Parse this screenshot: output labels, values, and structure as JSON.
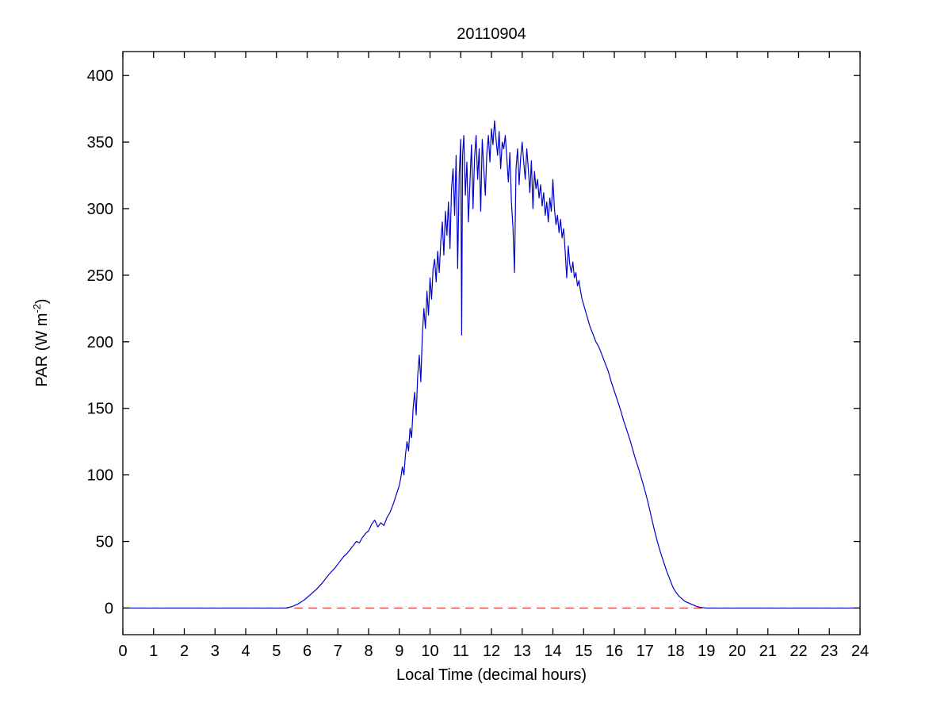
{
  "chart_data": {
    "type": "line",
    "title": "20110904",
    "xlabel": "Local Time (decimal hours)",
    "ylabel": "PAR (W m^-2)",
    "ylabel_parts": {
      "prefix": "PAR (W m",
      "sup": "-2",
      "suffix": ")"
    },
    "xlim": [
      0,
      24
    ],
    "ylim": [
      -20,
      418
    ],
    "xticks": [
      0,
      1,
      2,
      3,
      4,
      5,
      6,
      7,
      8,
      9,
      10,
      11,
      12,
      13,
      14,
      15,
      16,
      17,
      18,
      19,
      20,
      21,
      22,
      23,
      24
    ],
    "yticks": [
      0,
      50,
      100,
      150,
      200,
      250,
      300,
      350,
      400
    ],
    "grid": false,
    "legend": null,
    "axes_color": "#000000",
    "reference_lines": [
      {
        "name": "zero-reference",
        "y": 0,
        "color": "#DD3333",
        "style": "dashed"
      }
    ],
    "series": [
      {
        "name": "PAR",
        "color": "#0000CC",
        "style": "solid",
        "points": [
          [
            0,
            0
          ],
          [
            0.5,
            0
          ],
          [
            1,
            0
          ],
          [
            1.5,
            0
          ],
          [
            2,
            0
          ],
          [
            2.5,
            0
          ],
          [
            3,
            0
          ],
          [
            3.5,
            0
          ],
          [
            4,
            0
          ],
          [
            4.5,
            0
          ],
          [
            5,
            0
          ],
          [
            5.3,
            0
          ],
          [
            5.5,
            1
          ],
          [
            5.7,
            3
          ],
          [
            5.9,
            6
          ],
          [
            6.1,
            10
          ],
          [
            6.3,
            14
          ],
          [
            6.5,
            19
          ],
          [
            6.7,
            25
          ],
          [
            6.9,
            30
          ],
          [
            7.0,
            33
          ],
          [
            7.1,
            36
          ],
          [
            7.2,
            39
          ],
          [
            7.3,
            41
          ],
          [
            7.4,
            44
          ],
          [
            7.5,
            47
          ],
          [
            7.6,
            50
          ],
          [
            7.7,
            49
          ],
          [
            7.8,
            53
          ],
          [
            7.9,
            56
          ],
          [
            8.0,
            58
          ],
          [
            8.1,
            63
          ],
          [
            8.2,
            66
          ],
          [
            8.3,
            61
          ],
          [
            8.4,
            64
          ],
          [
            8.5,
            62
          ],
          [
            8.6,
            68
          ],
          [
            8.7,
            72
          ],
          [
            8.8,
            78
          ],
          [
            8.9,
            85
          ],
          [
            9.0,
            92
          ],
          [
            9.05,
            98
          ],
          [
            9.1,
            106
          ],
          [
            9.15,
            100
          ],
          [
            9.2,
            115
          ],
          [
            9.25,
            125
          ],
          [
            9.3,
            118
          ],
          [
            9.35,
            135
          ],
          [
            9.4,
            128
          ],
          [
            9.45,
            150
          ],
          [
            9.5,
            162
          ],
          [
            9.55,
            145
          ],
          [
            9.6,
            175
          ],
          [
            9.65,
            190
          ],
          [
            9.7,
            170
          ],
          [
            9.75,
            205
          ],
          [
            9.8,
            225
          ],
          [
            9.85,
            210
          ],
          [
            9.9,
            238
          ],
          [
            9.95,
            220
          ],
          [
            10.0,
            248
          ],
          [
            10.05,
            232
          ],
          [
            10.1,
            255
          ],
          [
            10.15,
            262
          ],
          [
            10.2,
            245
          ],
          [
            10.25,
            268
          ],
          [
            10.3,
            252
          ],
          [
            10.35,
            275
          ],
          [
            10.4,
            290
          ],
          [
            10.45,
            265
          ],
          [
            10.5,
            298
          ],
          [
            10.55,
            280
          ],
          [
            10.6,
            305
          ],
          [
            10.65,
            270
          ],
          [
            10.7,
            315
          ],
          [
            10.75,
            330
          ],
          [
            10.8,
            295
          ],
          [
            10.85,
            340
          ],
          [
            10.9,
            255
          ],
          [
            10.95,
            325
          ],
          [
            11.0,
            352
          ],
          [
            11.03,
            205
          ],
          [
            11.06,
            340
          ],
          [
            11.1,
            355
          ],
          [
            11.15,
            310
          ],
          [
            11.2,
            335
          ],
          [
            11.25,
            290
          ],
          [
            11.3,
            320
          ],
          [
            11.35,
            348
          ],
          [
            11.4,
            300
          ],
          [
            11.45,
            338
          ],
          [
            11.5,
            355
          ],
          [
            11.55,
            322
          ],
          [
            11.6,
            345
          ],
          [
            11.65,
            298
          ],
          [
            11.7,
            352
          ],
          [
            11.75,
            330
          ],
          [
            11.8,
            310
          ],
          [
            11.85,
            342
          ],
          [
            11.9,
            355
          ],
          [
            11.95,
            335
          ],
          [
            12.0,
            360
          ],
          [
            12.05,
            348
          ],
          [
            12.1,
            366
          ],
          [
            12.15,
            352
          ],
          [
            12.2,
            340
          ],
          [
            12.25,
            358
          ],
          [
            12.3,
            330
          ],
          [
            12.35,
            350
          ],
          [
            12.4,
            345
          ],
          [
            12.45,
            355
          ],
          [
            12.5,
            338
          ],
          [
            12.55,
            320
          ],
          [
            12.6,
            342
          ],
          [
            12.65,
            305
          ],
          [
            12.7,
            286
          ],
          [
            12.75,
            252
          ],
          [
            12.8,
            330
          ],
          [
            12.85,
            345
          ],
          [
            12.9,
            318
          ],
          [
            12.95,
            338
          ],
          [
            13.0,
            350
          ],
          [
            13.05,
            335
          ],
          [
            13.1,
            322
          ],
          [
            13.15,
            345
          ],
          [
            13.2,
            330
          ],
          [
            13.25,
            312
          ],
          [
            13.3,
            336
          ],
          [
            13.35,
            300
          ],
          [
            13.4,
            328
          ],
          [
            13.45,
            315
          ],
          [
            13.5,
            322
          ],
          [
            13.55,
            308
          ],
          [
            13.6,
            318
          ],
          [
            13.65,
            302
          ],
          [
            13.7,
            312
          ],
          [
            13.75,
            295
          ],
          [
            13.8,
            305
          ],
          [
            13.85,
            290
          ],
          [
            13.9,
            308
          ],
          [
            13.95,
            298
          ],
          [
            14.0,
            322
          ],
          [
            14.05,
            300
          ],
          [
            14.1,
            288
          ],
          [
            14.15,
            295
          ],
          [
            14.2,
            282
          ],
          [
            14.25,
            292
          ],
          [
            14.3,
            278
          ],
          [
            14.35,
            285
          ],
          [
            14.4,
            268
          ],
          [
            14.45,
            248
          ],
          [
            14.5,
            272
          ],
          [
            14.55,
            258
          ],
          [
            14.6,
            252
          ],
          [
            14.65,
            260
          ],
          [
            14.7,
            248
          ],
          [
            14.75,
            252
          ],
          [
            14.8,
            242
          ],
          [
            14.85,
            246
          ],
          [
            14.9,
            238
          ],
          [
            14.95,
            232
          ],
          [
            15.0,
            228
          ],
          [
            15.1,
            220
          ],
          [
            15.2,
            212
          ],
          [
            15.3,
            206
          ],
          [
            15.4,
            200
          ],
          [
            15.5,
            196
          ],
          [
            15.6,
            190
          ],
          [
            15.7,
            184
          ],
          [
            15.8,
            178
          ],
          [
            15.9,
            170
          ],
          [
            16.0,
            163
          ],
          [
            16.1,
            156
          ],
          [
            16.2,
            149
          ],
          [
            16.3,
            141
          ],
          [
            16.4,
            134
          ],
          [
            16.5,
            127
          ],
          [
            16.6,
            119
          ],
          [
            16.7,
            111
          ],
          [
            16.8,
            104
          ],
          [
            16.9,
            96
          ],
          [
            17.0,
            88
          ],
          [
            17.1,
            79
          ],
          [
            17.2,
            69
          ],
          [
            17.3,
            59
          ],
          [
            17.4,
            50
          ],
          [
            17.5,
            42
          ],
          [
            17.6,
            35
          ],
          [
            17.7,
            28
          ],
          [
            17.8,
            22
          ],
          [
            17.9,
            16
          ],
          [
            18.0,
            12
          ],
          [
            18.1,
            9
          ],
          [
            18.2,
            7
          ],
          [
            18.3,
            5
          ],
          [
            18.4,
            4
          ],
          [
            18.5,
            3
          ],
          [
            18.6,
            2
          ],
          [
            18.7,
            1
          ],
          [
            18.8,
            0.5
          ],
          [
            19.0,
            0
          ],
          [
            19.5,
            0
          ],
          [
            20,
            0
          ],
          [
            20.5,
            0
          ],
          [
            21,
            0
          ],
          [
            21.5,
            0
          ],
          [
            22,
            0
          ],
          [
            22.5,
            0
          ],
          [
            23,
            0
          ],
          [
            23.5,
            0
          ],
          [
            24,
            0
          ]
        ]
      }
    ]
  }
}
